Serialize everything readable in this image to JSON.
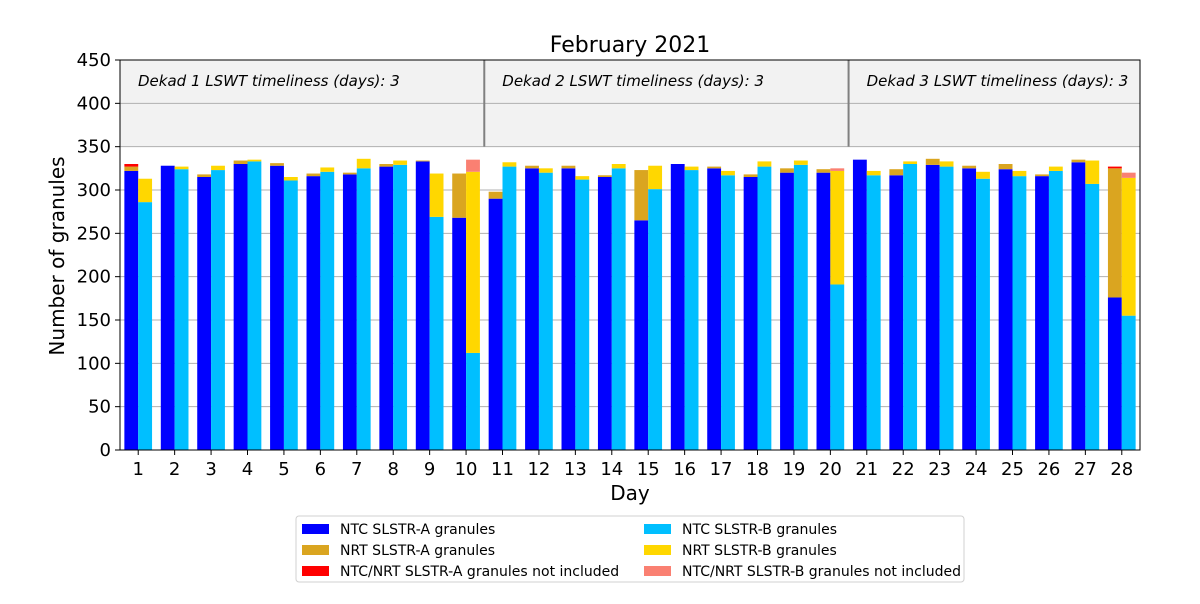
{
  "chart_data": {
    "type": "bar",
    "title": "February 2021",
    "xlabel": "Day",
    "ylabel": "Number of granules",
    "ylim": [
      0,
      450
    ],
    "yticks": [
      0,
      50,
      100,
      150,
      200,
      250,
      300,
      350,
      400,
      450
    ],
    "grid": "horizontal",
    "shaded_band": [
      350,
      450
    ],
    "categories": [
      "1",
      "2",
      "3",
      "4",
      "5",
      "6",
      "7",
      "8",
      "9",
      "10",
      "11",
      "12",
      "13",
      "14",
      "15",
      "16",
      "17",
      "18",
      "19",
      "20",
      "21",
      "22",
      "23",
      "24",
      "25",
      "26",
      "27",
      "28"
    ],
    "dekad_annotations": [
      {
        "text": "Dekad 1 LSWT timeliness (days): 3"
      },
      {
        "text": "Dekad 2 LSWT timeliness (days): 3"
      },
      {
        "text": "Dekad 3 LSWT timeliness (days): 3"
      }
    ],
    "dekad_boundaries_after_day": [
      10,
      20
    ],
    "groups": [
      {
        "name": "SLSTR-A",
        "stack": [
          "NTC SLSTR-A granules",
          "NRT SLSTR-A granules",
          "NTC/NRT SLSTR-A granules not included"
        ]
      },
      {
        "name": "SLSTR-B",
        "stack": [
          "NTC SLSTR-B granules",
          "NRT SLSTR-B granules",
          "NTC/NRT SLSTR-B granules not included"
        ]
      }
    ],
    "series": [
      {
        "name": "NTC SLSTR-A granules",
        "color": "#0000ff",
        "group": "SLSTR-A",
        "values": [
          322,
          328,
          315,
          330,
          328,
          316,
          318,
          327,
          333,
          268,
          290,
          325,
          325,
          315,
          265,
          330,
          325,
          315,
          320,
          320,
          335,
          317,
          329,
          325,
          324,
          316,
          332,
          176
        ]
      },
      {
        "name": "NRT SLSTR-A granules",
        "color": "#daa520",
        "group": "SLSTR-A",
        "values": [
          5,
          0,
          3,
          4,
          3,
          3,
          2,
          3,
          1,
          51,
          8,
          3,
          3,
          2,
          58,
          0,
          2,
          3,
          5,
          4,
          0,
          7,
          7,
          3,
          6,
          2,
          3,
          149
        ]
      },
      {
        "name": "NTC/NRT SLSTR-A granules not included",
        "color": "#ff0000",
        "group": "SLSTR-A",
        "values": [
          3,
          0,
          0,
          0,
          0,
          0,
          0,
          0,
          0,
          0,
          0,
          0,
          0,
          0,
          0,
          0,
          0,
          0,
          0,
          0,
          0,
          0,
          0,
          0,
          0,
          0,
          0,
          2
        ]
      },
      {
        "name": "NTC SLSTR-B granules",
        "color": "#00bfff",
        "group": "SLSTR-B",
        "values": [
          286,
          324,
          323,
          333,
          311,
          321,
          325,
          329,
          269,
          112,
          327,
          320,
          312,
          325,
          301,
          323,
          317,
          327,
          329,
          191,
          317,
          330,
          327,
          313,
          316,
          322,
          307,
          155
        ]
      },
      {
        "name": "NRT SLSTR-B granules",
        "color": "#ffd700",
        "group": "SLSTR-B",
        "values": [
          27,
          3,
          5,
          2,
          4,
          5,
          11,
          5,
          50,
          209,
          5,
          5,
          4,
          5,
          27,
          4,
          5,
          6,
          5,
          131,
          5,
          3,
          6,
          8,
          6,
          5,
          27,
          159
        ]
      },
      {
        "name": "NTC/NRT SLSTR-B granules not included",
        "color": "#fa8072",
        "group": "SLSTR-B",
        "values": [
          0,
          0,
          0,
          0,
          0,
          0,
          0,
          0,
          0,
          14,
          0,
          0,
          0,
          0,
          0,
          0,
          0,
          0,
          0,
          3,
          0,
          0,
          0,
          0,
          0,
          0,
          0,
          6
        ]
      }
    ],
    "legend": {
      "placement": "bottom-center",
      "columns": 2,
      "entries": [
        {
          "label": "NTC SLSTR-A granules",
          "color": "#0000ff"
        },
        {
          "label": "NTC SLSTR-B granules",
          "color": "#00bfff"
        },
        {
          "label": "NRT SLSTR-A granules",
          "color": "#daa520"
        },
        {
          "label": "NRT SLSTR-B granules",
          "color": "#ffd700"
        },
        {
          "label": "NTC/NRT SLSTR-A granules not included",
          "color": "#ff0000"
        },
        {
          "label": "NTC/NRT SLSTR-B granules not included",
          "color": "#fa8072"
        }
      ]
    }
  }
}
